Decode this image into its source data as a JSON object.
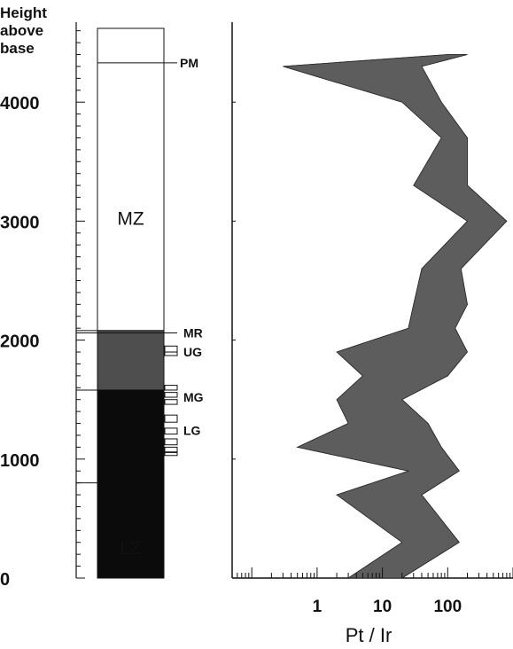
{
  "ylabel": [
    "Height",
    "above",
    "base"
  ],
  "y_ticks": [
    {
      "label": "4000",
      "value": 4000
    },
    {
      "label": "3000",
      "value": 3000
    },
    {
      "label": "2000",
      "value": 2000
    },
    {
      "label": "1000",
      "value": 1000
    },
    {
      "label": "0",
      "value": 0
    }
  ],
  "colors": {
    "mz_fill": "#ffffff",
    "upper_critical_fill": "#4e4e4e",
    "lower_zone_fill": "#0b0b0b",
    "envelope_fill": "#5d5d5d",
    "envelope_edge": "#2e2e2e",
    "ink": "#111111"
  },
  "column": {
    "zones": [
      {
        "label": "MZ",
        "from": 2080,
        "to": 4620,
        "fill": "mz_fill",
        "label_at": 3030,
        "label_color": "#111111"
      },
      {
        "label": "",
        "from": 1580,
        "to": 2080,
        "fill": "upper_critical_fill",
        "label_color": "#111111"
      },
      {
        "label": "LZ",
        "from": 0,
        "to": 1580,
        "fill": "lower_zone_fill",
        "label_at": 260,
        "label_color": "#7a7a7a"
      }
    ],
    "markers": [
      {
        "label": "PM",
        "height": 4330
      },
      {
        "label": "MR",
        "height": 2030
      },
      {
        "label": "UG",
        "height": 1900
      },
      {
        "label": "MG",
        "height": 1520
      },
      {
        "label": "LG",
        "height": 1220
      }
    ]
  },
  "chart_data": {
    "type": "area",
    "title": "",
    "xlabel": "Pt / Ir",
    "ylabel": "Height above base",
    "x_scale": "log",
    "xlim": [
      0.05,
      1000
    ],
    "ylim": [
      0,
      4620
    ],
    "x_ticks": [
      {
        "label": "1",
        "value": 1
      },
      {
        "label": "10",
        "value": 10
      },
      {
        "label": "100",
        "value": 100
      }
    ],
    "series": [
      {
        "heights": [
          0,
          300,
          700,
          900,
          1100,
          1300,
          1500,
          1700,
          1900,
          2100,
          2300,
          2600,
          3000,
          3300,
          3700,
          4000,
          4300,
          4400
        ],
        "pt_ir_min": [
          3,
          20,
          2,
          25,
          0.5,
          3,
          2,
          5,
          2,
          25,
          30,
          40,
          200,
          30,
          80,
          20,
          0.3,
          100
        ],
        "pt_ir_max": [
          20,
          150,
          40,
          150,
          80,
          50,
          20,
          100,
          200,
          130,
          200,
          160,
          800,
          200,
          200,
          80,
          40,
          200
        ]
      }
    ]
  }
}
